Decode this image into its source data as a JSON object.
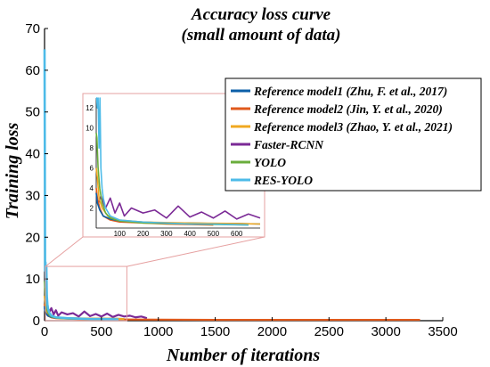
{
  "chart_data": {
    "type": "line",
    "title_lines": [
      "Accuracy loss curve",
      "(small amount of data)"
    ],
    "xlabel": "Number of iterations",
    "ylabel": "Training loss",
    "xlim": [
      0,
      3500
    ],
    "ylim": [
      0,
      70
    ],
    "x_ticks": [
      0,
      500,
      1000,
      1500,
      2000,
      2500,
      3000,
      3500
    ],
    "y_ticks": [
      0,
      10,
      20,
      30,
      40,
      50,
      60,
      70
    ],
    "grid": false,
    "legend_position": "right",
    "series": [
      {
        "name": "Reference model1 (Zhu, F. et al., 2017)",
        "color": "#0b5fa8",
        "x": [
          0,
          5,
          15,
          30,
          60,
          100,
          200,
          300,
          400,
          500,
          600,
          700
        ],
        "y": [
          3.5,
          2.5,
          1.8,
          1.2,
          0.9,
          0.7,
          0.6,
          0.5,
          0.5,
          0.45,
          0.45,
          0.4
        ]
      },
      {
        "name": "Reference model2 (Jin, Y. et al., 2020)",
        "color": "#e05a1c",
        "x": [
          0,
          5,
          15,
          30,
          60,
          100,
          300,
          500,
          1000,
          1500,
          2000,
          2500,
          3000,
          3300
        ],
        "y": [
          4,
          3,
          2,
          1.2,
          0.8,
          0.6,
          0.4,
          0.3,
          0.25,
          0.2,
          0.2,
          0.2,
          0.2,
          0.2
        ]
      },
      {
        "name": "Reference model3 (Zhao, Y. et al., 2021)",
        "color": "#f0a820",
        "x": [
          0,
          5,
          12,
          25,
          50,
          100,
          200,
          400,
          600,
          700
        ],
        "y": [
          6,
          5,
          3,
          2,
          1.2,
          0.8,
          0.6,
          0.5,
          0.45,
          0.4
        ]
      },
      {
        "name": "Faster-RCNN",
        "color": "#7b2a96",
        "x": [
          0,
          10,
          20,
          40,
          60,
          80,
          100,
          120,
          150,
          200,
          250,
          300,
          350,
          400,
          450,
          500,
          550,
          600,
          650,
          700,
          750,
          800,
          850,
          900
        ],
        "y": [
          3,
          2.5,
          3.2,
          2,
          3,
          1.5,
          2.5,
          1.2,
          2,
          1.5,
          1.8,
          1.0,
          2.2,
          1.1,
          1.6,
          1.0,
          1.7,
          0.9,
          1.4,
          1.0,
          1.2,
          0.8,
          1.0,
          0.6
        ]
      },
      {
        "name": "YOLO",
        "color": "#6aad3c",
        "x": [
          0,
          3,
          8,
          15,
          25,
          40,
          60,
          100,
          200,
          400,
          650
        ],
        "y": [
          9.5,
          9,
          6,
          4,
          2.5,
          1.5,
          1.0,
          0.7,
          0.5,
          0.4,
          0.3
        ]
      },
      {
        "name": "RES-YOLO",
        "color": "#4dbbe8",
        "x": [
          0,
          2,
          5,
          8,
          12,
          16,
          20,
          25,
          30,
          40,
          60,
          100,
          200,
          300,
          400,
          500,
          650
        ],
        "y": [
          65,
          45,
          12,
          14,
          8,
          13,
          6,
          4,
          3,
          2,
          1.2,
          0.8,
          0.6,
          0.5,
          0.4,
          0.4,
          0.3
        ]
      }
    ],
    "inset": {
      "xlim": [
        0,
        700
      ],
      "ylim": [
        0,
        13
      ],
      "x_ticks": [
        100,
        200,
        300,
        400,
        500,
        600
      ],
      "y_ticks": [
        2,
        4,
        6,
        8,
        10,
        12
      ],
      "zoom_region": {
        "x": [
          0,
          700
        ],
        "y": [
          0,
          13
        ]
      }
    }
  }
}
